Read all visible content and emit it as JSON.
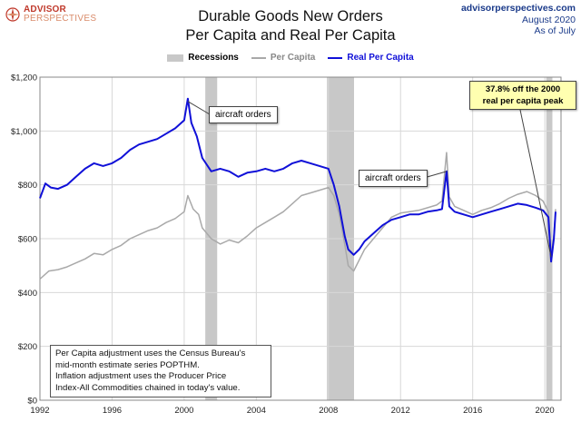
{
  "logo": {
    "line1": "ADVISOR",
    "line2": "PERSPECTIVES"
  },
  "title_line1": "Durable Goods New Orders",
  "title_line2": "Per Capita and Real Per Capita",
  "source": {
    "site": "advisorperspectives.com",
    "date": "August 2020",
    "asof": "As of July"
  },
  "note_lines": [
    "Per Capita adjustment uses the Census Bureau's",
    "mid-month estimate series POPTHM.",
    "Inflation adjustment uses the Producer Price",
    "Index-All Commodities chained in today's value."
  ],
  "annotations": {
    "aircraft_1": "aircraft orders",
    "aircraft_2": "aircraft orders",
    "peak_line1": "37.8% off the 2000",
    "peak_line2": "real per capita peak"
  },
  "chart_data": {
    "type": "line",
    "title": "Durable Goods New Orders Per Capita and Real Per Capita",
    "xlim": [
      1992.0,
      2020.9
    ],
    "ylim": [
      0,
      1200
    ],
    "x_ticks": [
      1992,
      1996,
      2000,
      2004,
      2008,
      2012,
      2016,
      2020
    ],
    "y_ticks": [
      0,
      200,
      400,
      600,
      800,
      1000,
      1200
    ],
    "y_tick_labels": [
      "$0",
      "$200",
      "$400",
      "$600",
      "$800",
      "$1,000",
      "$1,200"
    ],
    "grid": true,
    "legend_position": "top-center",
    "legend": [
      "Recessions",
      "Per Capita",
      "Real Per Capita"
    ],
    "recessions": [
      [
        2001.17,
        2001.83
      ],
      [
        2007.92,
        2009.42
      ],
      [
        2020.08,
        2020.42
      ]
    ],
    "colors": {
      "recession": "#c8c8c8",
      "per_capita": "#a9a9a9",
      "real_per_capita": "#1010d8"
    },
    "series": [
      {
        "name": "Per Capita",
        "points": [
          [
            1992.0,
            450
          ],
          [
            1992.5,
            480
          ],
          [
            1993.0,
            485
          ],
          [
            1993.5,
            495
          ],
          [
            1994.0,
            510
          ],
          [
            1994.5,
            525
          ],
          [
            1995.0,
            545
          ],
          [
            1995.5,
            540
          ],
          [
            1996.0,
            560
          ],
          [
            1996.5,
            575
          ],
          [
            1997.0,
            600
          ],
          [
            1997.5,
            615
          ],
          [
            1998.0,
            630
          ],
          [
            1998.5,
            640
          ],
          [
            1999.0,
            660
          ],
          [
            1999.5,
            675
          ],
          [
            2000.0,
            700
          ],
          [
            2000.2,
            760
          ],
          [
            2000.5,
            710
          ],
          [
            2000.8,
            690
          ],
          [
            2001.0,
            640
          ],
          [
            2001.5,
            600
          ],
          [
            2002.0,
            580
          ],
          [
            2002.5,
            595
          ],
          [
            2003.0,
            585
          ],
          [
            2003.5,
            610
          ],
          [
            2004.0,
            640
          ],
          [
            2004.5,
            660
          ],
          [
            2005.0,
            680
          ],
          [
            2005.5,
            700
          ],
          [
            2006.0,
            730
          ],
          [
            2006.5,
            760
          ],
          [
            2007.0,
            770
          ],
          [
            2007.5,
            780
          ],
          [
            2008.0,
            790
          ],
          [
            2008.3,
            760
          ],
          [
            2008.6,
            690
          ],
          [
            2008.9,
            580
          ],
          [
            2009.1,
            500
          ],
          [
            2009.4,
            480
          ],
          [
            2009.7,
            520
          ],
          [
            2010.0,
            560
          ],
          [
            2010.5,
            600
          ],
          [
            2011.0,
            640
          ],
          [
            2011.5,
            680
          ],
          [
            2012.0,
            695
          ],
          [
            2012.5,
            700
          ],
          [
            2013.0,
            705
          ],
          [
            2013.5,
            715
          ],
          [
            2014.0,
            725
          ],
          [
            2014.3,
            740
          ],
          [
            2014.55,
            920
          ],
          [
            2014.7,
            755
          ],
          [
            2015.0,
            720
          ],
          [
            2015.5,
            705
          ],
          [
            2016.0,
            690
          ],
          [
            2016.5,
            705
          ],
          [
            2017.0,
            715
          ],
          [
            2017.5,
            730
          ],
          [
            2018.0,
            750
          ],
          [
            2018.5,
            765
          ],
          [
            2019.0,
            775
          ],
          [
            2019.5,
            760
          ],
          [
            2019.9,
            740
          ],
          [
            2020.2,
            700
          ],
          [
            2020.35,
            540
          ],
          [
            2020.5,
            610
          ],
          [
            2020.6,
            710
          ]
        ]
      },
      {
        "name": "Real Per Capita",
        "points": [
          [
            1992.0,
            750
          ],
          [
            1992.3,
            805
          ],
          [
            1992.6,
            790
          ],
          [
            1993.0,
            785
          ],
          [
            1993.5,
            800
          ],
          [
            1994.0,
            830
          ],
          [
            1994.5,
            860
          ],
          [
            1995.0,
            880
          ],
          [
            1995.5,
            870
          ],
          [
            1996.0,
            880
          ],
          [
            1996.5,
            900
          ],
          [
            1997.0,
            930
          ],
          [
            1997.5,
            950
          ],
          [
            1998.0,
            960
          ],
          [
            1998.5,
            970
          ],
          [
            1999.0,
            990
          ],
          [
            1999.5,
            1010
          ],
          [
            2000.0,
            1040
          ],
          [
            2000.2,
            1120
          ],
          [
            2000.4,
            1030
          ],
          [
            2000.7,
            980
          ],
          [
            2001.0,
            900
          ],
          [
            2001.5,
            850
          ],
          [
            2002.0,
            860
          ],
          [
            2002.5,
            850
          ],
          [
            2003.0,
            830
          ],
          [
            2003.5,
            845
          ],
          [
            2004.0,
            850
          ],
          [
            2004.5,
            860
          ],
          [
            2005.0,
            850
          ],
          [
            2005.5,
            860
          ],
          [
            2006.0,
            880
          ],
          [
            2006.5,
            890
          ],
          [
            2007.0,
            880
          ],
          [
            2007.5,
            870
          ],
          [
            2008.0,
            860
          ],
          [
            2008.3,
            800
          ],
          [
            2008.6,
            720
          ],
          [
            2008.9,
            610
          ],
          [
            2009.1,
            560
          ],
          [
            2009.4,
            540
          ],
          [
            2009.7,
            560
          ],
          [
            2010.0,
            590
          ],
          [
            2010.5,
            620
          ],
          [
            2011.0,
            650
          ],
          [
            2011.5,
            670
          ],
          [
            2012.0,
            680
          ],
          [
            2012.5,
            690
          ],
          [
            2013.0,
            690
          ],
          [
            2013.5,
            700
          ],
          [
            2014.0,
            705
          ],
          [
            2014.3,
            710
          ],
          [
            2014.55,
            850
          ],
          [
            2014.7,
            720
          ],
          [
            2015.0,
            700
          ],
          [
            2015.5,
            690
          ],
          [
            2016.0,
            680
          ],
          [
            2016.5,
            690
          ],
          [
            2017.0,
            700
          ],
          [
            2017.5,
            710
          ],
          [
            2018.0,
            720
          ],
          [
            2018.5,
            730
          ],
          [
            2019.0,
            725
          ],
          [
            2019.5,
            715
          ],
          [
            2019.9,
            705
          ],
          [
            2020.2,
            680
          ],
          [
            2020.35,
            515
          ],
          [
            2020.5,
            600
          ],
          [
            2020.6,
            700
          ]
        ]
      }
    ]
  }
}
